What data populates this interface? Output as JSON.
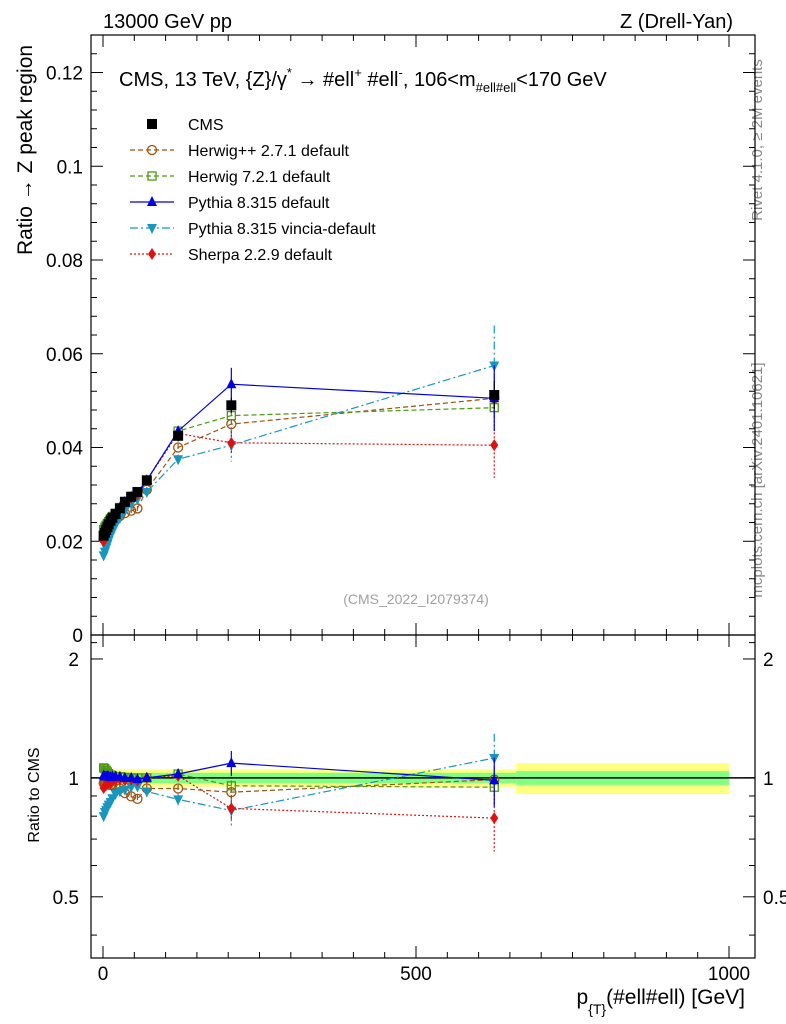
{
  "header": {
    "left": "13000 GeV pp",
    "right": "Z (Drell-Yan)"
  },
  "plot_title": "CMS, 13 TeV, {Z}/γ* → #ell⁺ #ell⁻, 106<m#ell#ell<170 GeV",
  "title_parts": {
    "a": "CMS, 13 TeV, {Z}/γ",
    "b": "*",
    "c": " →  #ell",
    "d": "+",
    "e": " #ell",
    "f": "-",
    "g": ",  106<m",
    "h": "#ell#ell",
    "i": "<170 GeV"
  },
  "side_labels": {
    "rivet": "Rivet 4.1.0, ≥ 2M events",
    "mcplots": "mcplots.cern.ch [arXiv:2401.10621]"
  },
  "watermark": "(CMS_2022_I2079374)",
  "xlabel_parts": {
    "p": "p",
    "sub": "{T}",
    "rest": "(#ell#ell) [GeV]"
  },
  "colors": {
    "cms": "#000000",
    "herwigpp": "#a0520f",
    "herwig7": "#4a9a10",
    "pythia": "#0000e0",
    "vincia": "#1896c0",
    "sherpa": "#e01010",
    "band_inner": "#80ff80",
    "band_outer": "#ffff80"
  },
  "chart_data": [
    {
      "type": "scatter",
      "panel": "main",
      "ylabel": "Ratio → Z peak region",
      "xlim": [
        0,
        1000
      ],
      "ylim": [
        0,
        0.128
      ],
      "yticks": [
        "0",
        "0.02",
        "0.04",
        "0.06",
        "0.08",
        "0.1",
        "0.12"
      ],
      "ytick_values": [
        0,
        0.02,
        0.04,
        0.06,
        0.08,
        0.1,
        0.12
      ],
      "x": [
        1,
        3,
        5,
        7,
        9,
        12,
        15,
        20,
        27,
        35,
        45,
        55,
        70,
        120,
        205,
        625
      ],
      "series": [
        {
          "name": "CMS",
          "key": "cms",
          "style": "marker-square",
          "values": [
            0.0212,
            0.0218,
            0.0224,
            0.023,
            0.0236,
            0.0244,
            0.025,
            0.0258,
            0.027,
            0.0284,
            0.0295,
            0.0305,
            0.033,
            0.0425,
            0.049,
            0.0512
          ],
          "errors": [
            0.0004,
            0.0004,
            0.0004,
            0.0004,
            0.0004,
            0.0004,
            0.0005,
            0.0005,
            0.0006,
            0.0006,
            0.0007,
            0.0008,
            0.0009,
            0.0012,
            0.0016,
            0.003
          ]
        },
        {
          "name": "Herwig++ 2.7.1 default",
          "key": "herwigpp",
          "style": "open-circle dashed",
          "values": [
            0.0205,
            0.0212,
            0.0218,
            0.0222,
            0.0228,
            0.0234,
            0.024,
            0.0247,
            0.0254,
            0.026,
            0.0265,
            0.027,
            0.031,
            0.04,
            0.045,
            0.0505
          ],
          "errors": [
            0.0003,
            0.0003,
            0.0003,
            0.0003,
            0.0003,
            0.0004,
            0.0004,
            0.0004,
            0.0004,
            0.0005,
            0.0005,
            0.0005,
            0.0006,
            0.0008,
            0.001,
            0.002
          ]
        },
        {
          "name": "Herwig 7.2.1 default",
          "key": "herwig7",
          "style": "open-square dashed",
          "values": [
            0.0225,
            0.023,
            0.0234,
            0.0238,
            0.0242,
            0.0248,
            0.0253,
            0.026,
            0.0272,
            0.0285,
            0.0295,
            0.0305,
            0.033,
            0.0435,
            0.0468,
            0.0485
          ],
          "errors": [
            0.0003,
            0.0003,
            0.0003,
            0.0003,
            0.0003,
            0.0004,
            0.0004,
            0.0004,
            0.0004,
            0.0005,
            0.0005,
            0.0005,
            0.0006,
            0.0008,
            0.001,
            0.002
          ]
        },
        {
          "name": "Pythia 8.315 default",
          "key": "pythia",
          "style": "triangle-up solid",
          "values": [
            0.0215,
            0.022,
            0.0226,
            0.0232,
            0.0238,
            0.0245,
            0.0252,
            0.026,
            0.0272,
            0.0284,
            0.0295,
            0.0303,
            0.033,
            0.0435,
            0.0535,
            0.0505
          ],
          "errors": [
            0.0003,
            0.0003,
            0.0003,
            0.0003,
            0.0003,
            0.0004,
            0.0004,
            0.0004,
            0.0004,
            0.0005,
            0.0005,
            0.0005,
            0.0006,
            0.001,
            0.0035,
            0.007
          ]
        },
        {
          "name": "Pythia 8.315 vincia-default",
          "key": "vincia",
          "style": "triangle-down dashdot",
          "values": [
            0.017,
            0.0178,
            0.0186,
            0.0194,
            0.0202,
            0.0212,
            0.0222,
            0.0235,
            0.025,
            0.0265,
            0.028,
            0.029,
            0.0305,
            0.0375,
            0.0405,
            0.0575
          ],
          "errors": [
            0.0003,
            0.0003,
            0.0003,
            0.0003,
            0.0003,
            0.0004,
            0.0004,
            0.0004,
            0.0004,
            0.0005,
            0.0005,
            0.0005,
            0.0006,
            0.001,
            0.0035,
            0.0085
          ]
        },
        {
          "name": "Sherpa 2.2.9 default",
          "key": "sherpa",
          "style": "diamond dotted",
          "values": [
            0.02,
            0.0208,
            0.0215,
            0.0222,
            0.023,
            0.0238,
            0.0246,
            0.0255,
            0.0268,
            0.028,
            0.0292,
            0.03,
            0.033,
            0.043,
            0.041,
            0.0405
          ],
          "errors": [
            0.0003,
            0.0003,
            0.0003,
            0.0003,
            0.0003,
            0.0004,
            0.0004,
            0.0004,
            0.0004,
            0.0005,
            0.0005,
            0.0005,
            0.0006,
            0.001,
            0.0025,
            0.007
          ]
        }
      ]
    },
    {
      "type": "scatter",
      "panel": "ratio",
      "ylabel": "Ratio to CMS",
      "xlabel": "p_{T}(#ell#ell) [GeV]",
      "xlim": [
        0,
        1000
      ],
      "xticks": [
        "0",
        "500",
        "1000"
      ],
      "xtick_values": [
        0,
        500,
        1000
      ],
      "ylim": [
        0.35,
        2.3
      ],
      "yticks": [
        "0.5",
        "1",
        "2"
      ],
      "ytick_values": [
        0.5,
        1,
        2
      ],
      "reference_line": 1,
      "uncertainty_band": {
        "x": [
          0,
          250,
          660,
          1000
        ],
        "inner": [
          0.03,
          0.03,
          0.04,
          0.04
        ],
        "outer": [
          0.05,
          0.05,
          0.09,
          0.09
        ]
      },
      "x": [
        1,
        3,
        5,
        7,
        9,
        12,
        15,
        20,
        27,
        35,
        45,
        55,
        70,
        120,
        205,
        625
      ],
      "series": [
        {
          "name": "Herwig++ 2.7.1 default",
          "key": "herwigpp",
          "values": [
            0.97,
            0.97,
            0.97,
            0.965,
            0.966,
            0.959,
            0.96,
            0.957,
            0.94,
            0.915,
            0.898,
            0.885,
            0.94,
            0.94,
            0.92,
            0.99
          ],
          "errors": [
            0.02,
            0.02,
            0.02,
            0.02,
            0.02,
            0.02,
            0.02,
            0.02,
            0.02,
            0.02,
            0.02,
            0.02,
            0.02,
            0.02,
            0.03,
            0.04
          ]
        },
        {
          "name": "Herwig 7.2.1 default",
          "key": "herwig7",
          "values": [
            1.06,
            1.055,
            1.045,
            1.035,
            1.025,
            1.016,
            1.012,
            1.008,
            1.007,
            1.003,
            1.0,
            1.0,
            1.0,
            1.023,
            0.955,
            0.947
          ],
          "errors": [
            0.02,
            0.02,
            0.02,
            0.02,
            0.02,
            0.02,
            0.02,
            0.02,
            0.02,
            0.02,
            0.02,
            0.02,
            0.02,
            0.02,
            0.03,
            0.04
          ]
        },
        {
          "name": "Pythia 8.315 default",
          "key": "pythia",
          "values": [
            1.014,
            1.009,
            1.009,
            1.009,
            1.008,
            1.004,
            1.008,
            1.008,
            1.007,
            1.0,
            1.0,
            0.993,
            1.0,
            1.023,
            1.09,
            0.986
          ],
          "errors": [
            0.02,
            0.02,
            0.02,
            0.02,
            0.02,
            0.02,
            0.02,
            0.02,
            0.02,
            0.02,
            0.02,
            0.02,
            0.02,
            0.03,
            0.08,
            0.14
          ]
        },
        {
          "name": "Pythia 8.315 vincia-default",
          "key": "vincia",
          "values": [
            0.8,
            0.82,
            0.83,
            0.843,
            0.856,
            0.869,
            0.888,
            0.911,
            0.926,
            0.933,
            0.949,
            0.951,
            0.924,
            0.882,
            0.827,
            1.123
          ],
          "errors": [
            0.02,
            0.02,
            0.02,
            0.02,
            0.02,
            0.02,
            0.02,
            0.02,
            0.02,
            0.02,
            0.02,
            0.02,
            0.02,
            0.03,
            0.07,
            0.17
          ]
        },
        {
          "name": "Sherpa 2.2.9 default",
          "key": "sherpa",
          "values": [
            0.943,
            0.954,
            0.96,
            0.965,
            0.975,
            0.975,
            0.984,
            0.988,
            0.993,
            0.986,
            0.99,
            0.984,
            1.0,
            1.012,
            0.837,
            0.791
          ],
          "errors": [
            0.02,
            0.02,
            0.02,
            0.02,
            0.02,
            0.02,
            0.02,
            0.02,
            0.02,
            0.02,
            0.02,
            0.02,
            0.02,
            0.03,
            0.06,
            0.14
          ]
        }
      ]
    }
  ]
}
